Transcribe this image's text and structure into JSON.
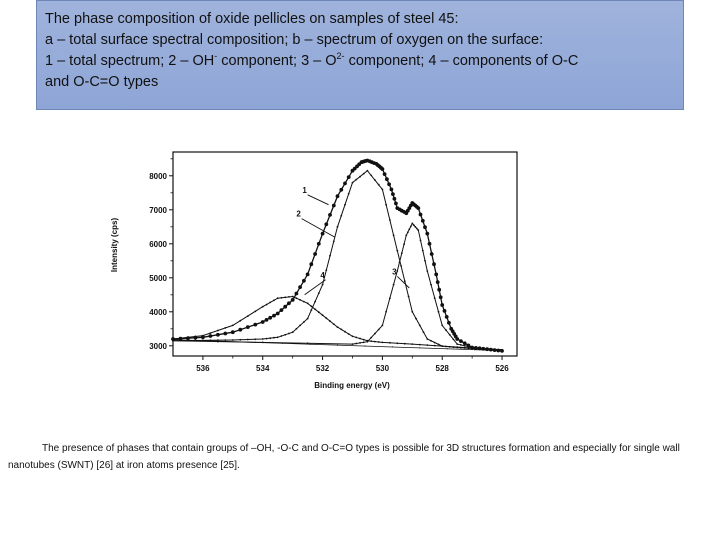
{
  "slide": {
    "title_lines": [
      "The phase composition of oxide pellicles on samples of steel 45:",
      "a – total surface spectral composition; b – spectrum of oxygen on the surface:",
      "and O-C=O types"
    ],
    "line3_parts": {
      "a": "1 – total spectrum; 2 – OH",
      "a_sup": "-",
      "b": " component; 3 – O",
      "b_sup": "2-",
      "c": " component; 4 – components of  O-C"
    },
    "caption": "The presence of phases that contain groups of –OH, -O-C and O-C=O types is possible for 3D structures formation and especially for single wall nanotubes (SWNT) [26] at iron atoms presence [25]."
  },
  "chart_data": {
    "type": "line",
    "xlabel": "Binding energy (eV)",
    "ylabel": "Intensity (cps)",
    "xlim": [
      537,
      525.5
    ],
    "ylim": [
      2700,
      8700
    ],
    "x_ticks": [
      536,
      534,
      532,
      530,
      528,
      526
    ],
    "y_ticks": [
      3000,
      4000,
      5000,
      6000,
      7000,
      8000
    ],
    "series_labels": [
      "1",
      "2",
      "3",
      "4"
    ],
    "series": [
      {
        "name": "1",
        "x": [
          537,
          536,
          535,
          534,
          533.5,
          533,
          532.5,
          532,
          531.5,
          531,
          530.7,
          530.5,
          530.2,
          530,
          529.7,
          529.5,
          529.2,
          529,
          528.8,
          528.5,
          528.2,
          528,
          527.7,
          527.5,
          527,
          526.5,
          526
        ],
        "y": [
          3200,
          3250,
          3400,
          3700,
          3950,
          4350,
          5100,
          6300,
          7400,
          8150,
          8400,
          8450,
          8350,
          8200,
          7600,
          7050,
          6900,
          7200,
          7050,
          6300,
          5100,
          4200,
          3500,
          3200,
          2950,
          2900,
          2850
        ]
      },
      {
        "name": "2",
        "x": [
          537,
          536,
          535,
          534,
          533.5,
          533,
          532.5,
          532,
          531.5,
          531,
          530.5,
          530,
          529.5,
          529,
          528.5,
          528,
          527.5,
          527,
          526
        ],
        "y": [
          3150,
          3160,
          3170,
          3200,
          3250,
          3400,
          3800,
          4800,
          6500,
          7800,
          8150,
          7600,
          5800,
          4000,
          3200,
          2990,
          2950,
          2920,
          2880
        ]
      },
      {
        "name": "3",
        "x": [
          537,
          531,
          530.5,
          530,
          529.5,
          529.2,
          529,
          528.8,
          528.5,
          528,
          527.5,
          527,
          526
        ],
        "y": [
          3150,
          3050,
          3120,
          3600,
          5200,
          6250,
          6600,
          6400,
          5200,
          3600,
          3050,
          2950,
          2880
        ]
      },
      {
        "name": "4",
        "x": [
          537,
          536,
          535,
          534,
          533.5,
          533,
          532.5,
          532,
          531.5,
          531,
          530.5,
          530,
          529,
          528,
          526
        ],
        "y": [
          3200,
          3300,
          3600,
          4150,
          4400,
          4450,
          4250,
          3900,
          3550,
          3280,
          3150,
          3100,
          3050,
          2990,
          2880
        ]
      },
      {
        "name": "baseline",
        "x": [
          537,
          526
        ],
        "y": [
          3180,
          2860
        ]
      }
    ]
  }
}
